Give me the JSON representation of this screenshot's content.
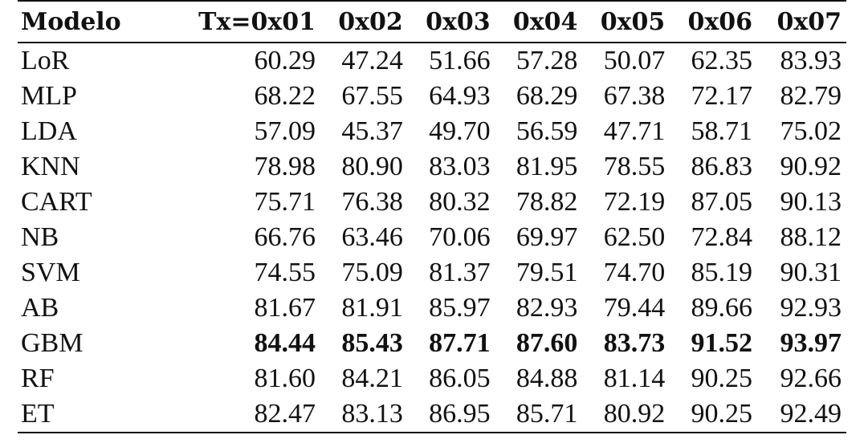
{
  "table": {
    "headers": [
      "Modelo",
      "Tx=0x01",
      "0x02",
      "0x03",
      "0x04",
      "0x05",
      "0x06",
      "0x07"
    ],
    "rows": [
      {
        "model": "LoR",
        "values": [
          "60.29",
          "47.24",
          "51.66",
          "57.28",
          "50.07",
          "62.35",
          "83.93"
        ],
        "bold": false
      },
      {
        "model": "MLP",
        "values": [
          "68.22",
          "67.55",
          "64.93",
          "68.29",
          "67.38",
          "72.17",
          "82.79"
        ],
        "bold": false
      },
      {
        "model": "LDA",
        "values": [
          "57.09",
          "45.37",
          "49.70",
          "56.59",
          "47.71",
          "58.71",
          "75.02"
        ],
        "bold": false
      },
      {
        "model": "KNN",
        "values": [
          "78.98",
          "80.90",
          "83.03",
          "81.95",
          "78.55",
          "86.83",
          "90.92"
        ],
        "bold": false
      },
      {
        "model": "CART",
        "values": [
          "75.71",
          "76.38",
          "80.32",
          "78.82",
          "72.19",
          "87.05",
          "90.13"
        ],
        "bold": false
      },
      {
        "model": "NB",
        "values": [
          "66.76",
          "63.46",
          "70.06",
          "69.97",
          "62.50",
          "72.84",
          "88.12"
        ],
        "bold": false
      },
      {
        "model": "SVM",
        "values": [
          "74.55",
          "75.09",
          "81.37",
          "79.51",
          "74.70",
          "85.19",
          "90.31"
        ],
        "bold": false
      },
      {
        "model": "AB",
        "values": [
          "81.67",
          "81.91",
          "85.97",
          "82.93",
          "79.44",
          "89.66",
          "92.93"
        ],
        "bold": false
      },
      {
        "model": "GBM",
        "values": [
          "84.44",
          "85.43",
          "87.71",
          "87.60",
          "83.73",
          "91.52",
          "93.97"
        ],
        "bold": true
      },
      {
        "model": "RF",
        "values": [
          "81.60",
          "84.21",
          "86.05",
          "84.88",
          "81.14",
          "90.25",
          "92.66"
        ],
        "bold": false
      },
      {
        "model": "ET",
        "values": [
          "82.47",
          "83.13",
          "86.95",
          "85.71",
          "80.92",
          "90.25",
          "92.49"
        ],
        "bold": false
      }
    ]
  }
}
